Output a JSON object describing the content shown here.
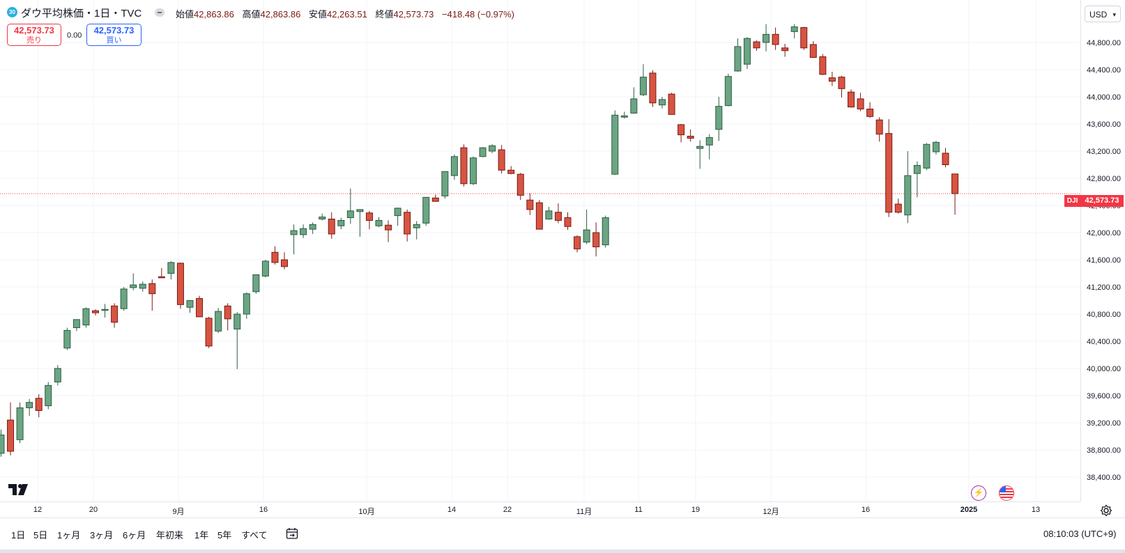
{
  "header": {
    "symbol_badge": "30",
    "symbol_title": "ダウ平均株価・1日・TVC",
    "ohlc": {
      "open_label": "始値",
      "open": "42,863.86",
      "high_label": "高値",
      "high": "42,863.86",
      "low_label": "安値",
      "low": "42,263.51",
      "close_label": "終値",
      "close": "42,573.73",
      "change": "−418.48 (−0.97%)"
    }
  },
  "trade": {
    "sell_price": "42,573.73",
    "sell_label": "売り",
    "spread": "0.00",
    "buy_price": "42,573.73",
    "buy_label": "買い"
  },
  "price_axis": {
    "currency": "USD",
    "last_price": "42,573.73",
    "symbol_tag": "DJI",
    "ticks": [
      "44,800.00",
      "44,400.00",
      "44,000.00",
      "43,600.00",
      "43,200.00",
      "42,800.00",
      "42,400.00",
      "42,000.00",
      "41,600.00",
      "41,200.00",
      "40,800.00",
      "40,400.00",
      "40,000.00",
      "39,600.00",
      "39,200.00",
      "38,800.00",
      "38,400.00"
    ]
  },
  "time_axis": {
    "labels": [
      "12",
      "20",
      "9月",
      "16",
      "10月",
      "14",
      "22",
      "11月",
      "11",
      "19",
      "12月",
      "16",
      "2025",
      "13"
    ]
  },
  "bottom_bar": {
    "ranges": [
      "1日",
      "5日",
      "1ヶ月",
      "3ヶ月",
      "6ヶ月",
      "年初来",
      "1年",
      "5年",
      "すべて"
    ],
    "clock": "08:10:03 (UTC+9)"
  },
  "colors": {
    "up": "#6ba583",
    "down": "#d75442",
    "accent": "#f23645",
    "buy": "#2962ff",
    "grid": "#f0f3fa"
  },
  "icons": [
    "tradingview-logo-icon",
    "lightning-event-icon",
    "us-flag-event-icon",
    "calendar-range-icon",
    "axis-settings-icon",
    "chevron-down-icon"
  ],
  "chart_data": {
    "type": "candlestick",
    "ylim": [
      38200,
      45100
    ],
    "yticks": [
      44800,
      44400,
      44000,
      43600,
      43200,
      42800,
      42400,
      42000,
      41600,
      41200,
      40800,
      40400,
      40000,
      39600,
      39200,
      38800,
      38400
    ],
    "last_price_line": 42573.73,
    "candles": [
      {
        "o": 38750,
        "h": 39100,
        "l": 38700,
        "c": 39020
      },
      {
        "o": 39240,
        "h": 39500,
        "l": 38720,
        "c": 38780
      },
      {
        "o": 38950,
        "h": 39500,
        "l": 38900,
        "c": 39420
      },
      {
        "o": 39420,
        "h": 39550,
        "l": 39300,
        "c": 39500
      },
      {
        "o": 39560,
        "h": 39620,
        "l": 39280,
        "c": 39380
      },
      {
        "o": 39450,
        "h": 39800,
        "l": 39400,
        "c": 39750
      },
      {
        "o": 39800,
        "h": 40050,
        "l": 39750,
        "c": 40000
      },
      {
        "o": 40300,
        "h": 40600,
        "l": 40270,
        "c": 40560
      },
      {
        "o": 40600,
        "h": 40700,
        "l": 40550,
        "c": 40720
      },
      {
        "o": 40640,
        "h": 40900,
        "l": 40600,
        "c": 40880
      },
      {
        "o": 40850,
        "h": 40870,
        "l": 40780,
        "c": 40820
      },
      {
        "o": 40860,
        "h": 40950,
        "l": 40750,
        "c": 40870
      },
      {
        "o": 40920,
        "h": 40960,
        "l": 40600,
        "c": 40680
      },
      {
        "o": 40880,
        "h": 41200,
        "l": 40850,
        "c": 41170
      },
      {
        "o": 41190,
        "h": 41400,
        "l": 41150,
        "c": 41230
      },
      {
        "o": 41180,
        "h": 41280,
        "l": 41130,
        "c": 41240
      },
      {
        "o": 41250,
        "h": 41310,
        "l": 40850,
        "c": 41100
      },
      {
        "o": 41350,
        "h": 41480,
        "l": 41330,
        "c": 41340
      },
      {
        "o": 41400,
        "h": 41580,
        "l": 41310,
        "c": 41560
      },
      {
        "o": 41550,
        "h": 41560,
        "l": 40880,
        "c": 40940
      },
      {
        "o": 40900,
        "h": 40980,
        "l": 40820,
        "c": 41000
      },
      {
        "o": 41030,
        "h": 41070,
        "l": 40780,
        "c": 40760
      },
      {
        "o": 40740,
        "h": 40760,
        "l": 40300,
        "c": 40330
      },
      {
        "o": 40550,
        "h": 40890,
        "l": 40520,
        "c": 40840
      },
      {
        "o": 40920,
        "h": 40960,
        "l": 40560,
        "c": 40730
      },
      {
        "o": 40580,
        "h": 40830,
        "l": 39990,
        "c": 40800
      },
      {
        "o": 40800,
        "h": 41120,
        "l": 40730,
        "c": 41100
      },
      {
        "o": 41130,
        "h": 41380,
        "l": 41100,
        "c": 41380
      },
      {
        "o": 41360,
        "h": 41600,
        "l": 41340,
        "c": 41580
      },
      {
        "o": 41710,
        "h": 41800,
        "l": 41530,
        "c": 41560
      },
      {
        "o": 41600,
        "h": 41710,
        "l": 41460,
        "c": 41500
      },
      {
        "o": 41970,
        "h": 42120,
        "l": 41680,
        "c": 42030
      },
      {
        "o": 41970,
        "h": 42120,
        "l": 41920,
        "c": 42060
      },
      {
        "o": 42050,
        "h": 42150,
        "l": 41980,
        "c": 42120
      },
      {
        "o": 42200,
        "h": 42280,
        "l": 42180,
        "c": 42230
      },
      {
        "o": 42200,
        "h": 42300,
        "l": 41910,
        "c": 41980
      },
      {
        "o": 42100,
        "h": 42220,
        "l": 42050,
        "c": 42180
      },
      {
        "o": 42220,
        "h": 42650,
        "l": 42130,
        "c": 42320
      },
      {
        "o": 42310,
        "h": 42340,
        "l": 41940,
        "c": 42340
      },
      {
        "o": 42290,
        "h": 42320,
        "l": 42050,
        "c": 42180
      },
      {
        "o": 42100,
        "h": 42230,
        "l": 42080,
        "c": 42180
      },
      {
        "o": 42110,
        "h": 42180,
        "l": 41860,
        "c": 42040
      },
      {
        "o": 42250,
        "h": 42370,
        "l": 42100,
        "c": 42360
      },
      {
        "o": 42300,
        "h": 42340,
        "l": 41870,
        "c": 41980
      },
      {
        "o": 42070,
        "h": 42170,
        "l": 41900,
        "c": 42120
      },
      {
        "o": 42140,
        "h": 42520,
        "l": 42100,
        "c": 42520
      },
      {
        "o": 42510,
        "h": 42560,
        "l": 42480,
        "c": 42460
      },
      {
        "o": 42540,
        "h": 42900,
        "l": 42500,
        "c": 42900
      },
      {
        "o": 42840,
        "h": 43150,
        "l": 42780,
        "c": 43120
      },
      {
        "o": 43250,
        "h": 43300,
        "l": 42680,
        "c": 42720
      },
      {
        "o": 42720,
        "h": 43120,
        "l": 42700,
        "c": 43100
      },
      {
        "o": 43120,
        "h": 43260,
        "l": 43110,
        "c": 43250
      },
      {
        "o": 43200,
        "h": 43300,
        "l": 43170,
        "c": 43280
      },
      {
        "o": 43220,
        "h": 43290,
        "l": 42870,
        "c": 42920
      },
      {
        "o": 42920,
        "h": 42980,
        "l": 42860,
        "c": 42870
      },
      {
        "o": 42860,
        "h": 42880,
        "l": 42480,
        "c": 42550
      },
      {
        "o": 42480,
        "h": 42580,
        "l": 42260,
        "c": 42340
      },
      {
        "o": 42440,
        "h": 42480,
        "l": 42100,
        "c": 42050
      },
      {
        "o": 42200,
        "h": 42380,
        "l": 42190,
        "c": 42320
      },
      {
        "o": 42300,
        "h": 42430,
        "l": 42140,
        "c": 42180
      },
      {
        "o": 42220,
        "h": 42300,
        "l": 42040,
        "c": 42090
      },
      {
        "o": 41940,
        "h": 41960,
        "l": 41710,
        "c": 41760
      },
      {
        "o": 41860,
        "h": 42340,
        "l": 41830,
        "c": 42040
      },
      {
        "o": 42000,
        "h": 42150,
        "l": 41650,
        "c": 41790
      },
      {
        "o": 41820,
        "h": 42250,
        "l": 41780,
        "c": 42220
      },
      {
        "o": 42860,
        "h": 43800,
        "l": 42850,
        "c": 43730
      },
      {
        "o": 43700,
        "h": 43780,
        "l": 43680,
        "c": 43720
      },
      {
        "o": 43760,
        "h": 44140,
        "l": 43750,
        "c": 43970
      },
      {
        "o": 44030,
        "h": 44480,
        "l": 44010,
        "c": 44290
      },
      {
        "o": 44350,
        "h": 44390,
        "l": 43850,
        "c": 43910
      },
      {
        "o": 43880,
        "h": 44000,
        "l": 43830,
        "c": 43960
      },
      {
        "o": 44040,
        "h": 44060,
        "l": 43740,
        "c": 43740
      },
      {
        "o": 43590,
        "h": 43600,
        "l": 43330,
        "c": 43440
      },
      {
        "o": 43420,
        "h": 43520,
        "l": 43340,
        "c": 43390
      },
      {
        "o": 43240,
        "h": 43360,
        "l": 42940,
        "c": 43270
      },
      {
        "o": 43290,
        "h": 43450,
        "l": 43080,
        "c": 43400
      },
      {
        "o": 43520,
        "h": 44000,
        "l": 43350,
        "c": 43860
      },
      {
        "o": 43870,
        "h": 44340,
        "l": 43860,
        "c": 44300
      },
      {
        "o": 44380,
        "h": 44860,
        "l": 44370,
        "c": 44740
      },
      {
        "o": 44480,
        "h": 44880,
        "l": 44410,
        "c": 44860
      },
      {
        "o": 44810,
        "h": 44830,
        "l": 44680,
        "c": 44720
      },
      {
        "o": 44800,
        "h": 45070,
        "l": 44670,
        "c": 44920
      },
      {
        "o": 44920,
        "h": 45020,
        "l": 44690,
        "c": 44770
      },
      {
        "o": 44720,
        "h": 44780,
        "l": 44590,
        "c": 44680
      },
      {
        "o": 44960,
        "h": 45070,
        "l": 44860,
        "c": 45030
      },
      {
        "o": 45020,
        "h": 45030,
        "l": 44690,
        "c": 44720
      },
      {
        "o": 44770,
        "h": 44820,
        "l": 44590,
        "c": 44580
      },
      {
        "o": 44590,
        "h": 44630,
        "l": 44320,
        "c": 44330
      },
      {
        "o": 44280,
        "h": 44370,
        "l": 44160,
        "c": 44230
      },
      {
        "o": 44290,
        "h": 44310,
        "l": 43990,
        "c": 44120
      },
      {
        "o": 44070,
        "h": 44110,
        "l": 43840,
        "c": 43850
      },
      {
        "o": 43970,
        "h": 44060,
        "l": 43790,
        "c": 43820
      },
      {
        "o": 43820,
        "h": 43920,
        "l": 43690,
        "c": 43710
      },
      {
        "o": 43660,
        "h": 43700,
        "l": 43340,
        "c": 43450
      },
      {
        "o": 43460,
        "h": 43670,
        "l": 42230,
        "c": 42300
      },
      {
        "o": 42420,
        "h": 42500,
        "l": 42280,
        "c": 42300
      },
      {
        "o": 42260,
        "h": 43200,
        "l": 42140,
        "c": 42840
      },
      {
        "o": 42870,
        "h": 43050,
        "l": 42520,
        "c": 42990
      },
      {
        "o": 42950,
        "h": 43320,
        "l": 42920,
        "c": 43300
      },
      {
        "o": 43190,
        "h": 43350,
        "l": 43150,
        "c": 43330
      },
      {
        "o": 43170,
        "h": 43250,
        "l": 42960,
        "c": 43000
      },
      {
        "o": 42864,
        "h": 42864,
        "l": 42264,
        "c": 42574
      }
    ]
  }
}
